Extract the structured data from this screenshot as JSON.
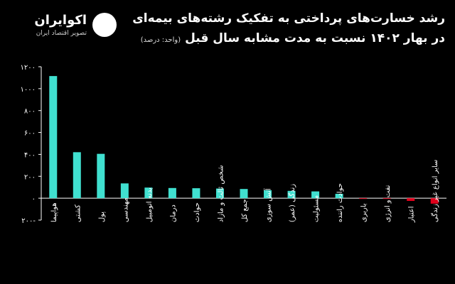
{
  "header": {
    "title_line1": "رشد خسارت‌های پرداختی به تفکیک رشته‌های بیمه‌ای",
    "title_line2": "در بهار ۱۴۰۲ نسبت به مدت مشابه سال قبل",
    "unit": "(واحد: درصد)"
  },
  "brand": {
    "name": "اکوایران",
    "tagline": "تصویر اقتصاد ایران"
  },
  "colors": {
    "positive": "#40E0D0",
    "negative": "#E0001B",
    "background": "#000000"
  },
  "chart_data": {
    "type": "bar",
    "title": "رشد خسارت‌های پرداختی به تفکیک رشته‌های بیمه‌ای در بهار ۱۴۰۲ نسبت به مدت مشابه سال قبل",
    "ylabel": "",
    "xlabel": "",
    "ylim": [
      -200,
      1200
    ],
    "yticks": [
      -200,
      0,
      200,
      400,
      600,
      800,
      1000,
      1200
    ],
    "ytick_labels": [
      "۲۰۰-",
      "۰",
      "۲۰۰",
      "۴۰۰",
      "۶۰۰",
      "۸۰۰",
      "۱۰۰۰",
      "۱۲۰۰"
    ],
    "grid": false,
    "categories": [
      "هواپیما",
      "کشتی",
      "پول",
      "مهندسی",
      "بدنه اتومبیل",
      "درمان",
      "حوادث",
      "شخص ثالث و مازاد",
      "جمع کل",
      "آتش سوزی",
      "زندگی (عمر)",
      "مسئولیت",
      "حوادث راننده",
      "باربری",
      "نفت و انرژی",
      "اعتبار",
      "سایر انواع غیر زندگی"
    ],
    "values": [
      1115,
      420,
      405,
      135,
      97,
      93,
      91,
      88,
      84,
      73,
      67,
      62,
      40,
      -3,
      -4,
      -25,
      -50
    ]
  }
}
